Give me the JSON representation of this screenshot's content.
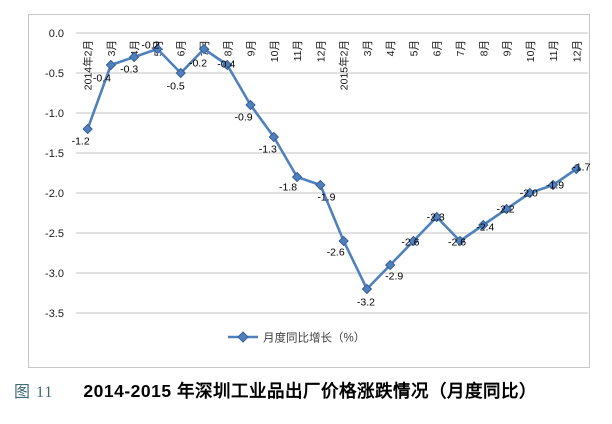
{
  "figure": {
    "number": "图 11",
    "caption": "2014-2015 年深圳工业品出厂价格涨跌情况（月度同比）"
  },
  "chart_data": {
    "type": "line",
    "title": "",
    "xlabel": "",
    "ylabel": "",
    "categories": [
      "2014年2月",
      "3月",
      "4月",
      "5月",
      "6月",
      "7月",
      "8月",
      "9月",
      "10月",
      "11月",
      "12月",
      "2015年2月",
      "3月",
      "4月",
      "5月",
      "6月",
      "7月",
      "8月",
      "9月",
      "10月",
      "11月",
      "12月"
    ],
    "series": [
      {
        "name": "月度同比增长（%）",
        "values": [
          -1.2,
          -0.4,
          -0.3,
          -0.2,
          -0.5,
          -0.2,
          -0.4,
          -0.9,
          -1.3,
          -1.8,
          -1.9,
          -2.6,
          -3.2,
          -2.9,
          -2.6,
          -2.3,
          -2.6,
          -2.4,
          -2.2,
          -2.0,
          -1.9,
          -1.7
        ]
      }
    ],
    "data_labels": [
      "-1.2",
      "-0.4",
      "-0.3",
      "-0.2",
      "-0.5",
      "-0.2",
      "-0.4",
      "-0.9",
      "-1.3",
      "-1.8",
      "-1.9",
      "-2.6",
      "-3.2",
      "-2.9",
      "-2.6",
      "-2.3",
      "-2.6",
      "-2.4",
      "-2.2",
      "-2.0",
      "-1.9",
      "-1.7"
    ],
    "ylim": [
      -3.5,
      0.0
    ],
    "ytick_labels": [
      "0.0",
      "-0.5",
      "-1.0",
      "-1.5",
      "-2.0",
      "-2.5",
      "-3.0",
      "-3.5"
    ],
    "grid": true,
    "legend_position": "bottom",
    "marker": "diamond",
    "colors": {
      "line": "#4F81BD",
      "marker_fill": "#4F81BD",
      "marker_border": "#38609A",
      "gridline": "#C3C3C3",
      "frame_border": "#C6C6C6",
      "tick_label": "#1a1a1a",
      "data_label": "#000000",
      "legend_text": "#3f3f3f"
    }
  }
}
